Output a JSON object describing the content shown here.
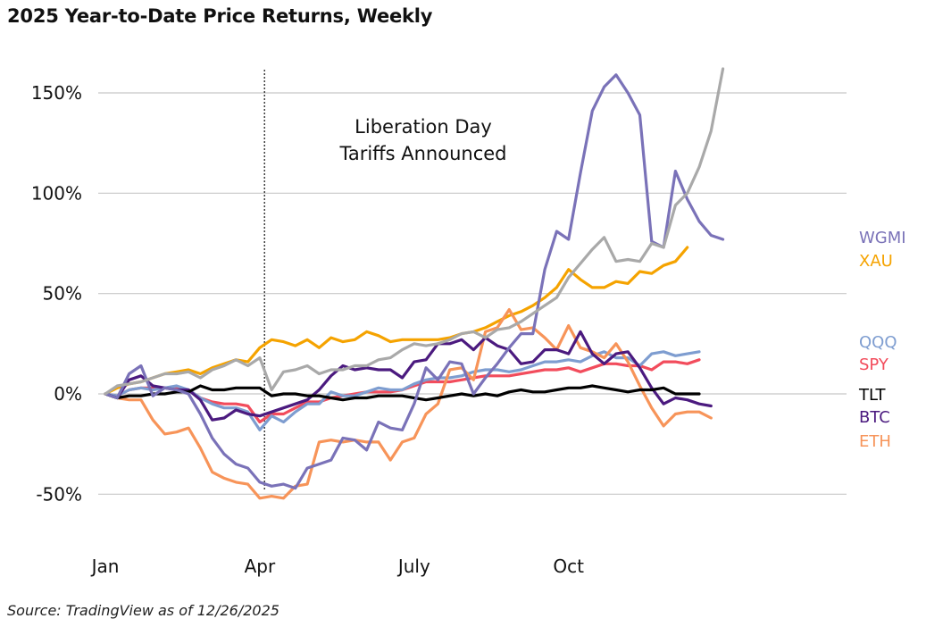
{
  "chart_data": {
    "type": "line",
    "title": "2025 Year-to-Date Price Returns, Weekly",
    "source": "Source: TradingView as of 12/26/2025",
    "xlabel": "",
    "ylabel": "",
    "ylim": [
      -65,
      170
    ],
    "yticks": [
      {
        "value": 150,
        "label": "150%"
      },
      {
        "value": 100,
        "label": "100%"
      },
      {
        "value": 50,
        "label": "50%"
      },
      {
        "value": 0,
        "label": "0%"
      },
      {
        "value": -50,
        "label": "-50%"
      }
    ],
    "xlim": [
      0,
      51
    ],
    "xticks": [
      {
        "value": 0,
        "label": "Jan"
      },
      {
        "value": 13,
        "label": "Apr"
      },
      {
        "value": 26,
        "label": "July"
      },
      {
        "value": 39,
        "label": "Oct"
      }
    ],
    "annotation": {
      "x": 13.4,
      "line1": "Liberation Day",
      "line2": "Tariffs Announced"
    },
    "series": [
      {
        "name": "XAU",
        "color": "#F5A300",
        "label_color": "#F5A300",
        "values": [
          0,
          3,
          5,
          6,
          8,
          10,
          11,
          12,
          10,
          13,
          15,
          17,
          16,
          23,
          27,
          26,
          24,
          27,
          23,
          28,
          26,
          27,
          31,
          29,
          26,
          27,
          27,
          27,
          27,
          28,
          30,
          31,
          33,
          36,
          39,
          41,
          44,
          48,
          53,
          62,
          57,
          53,
          53,
          56,
          55,
          61,
          60,
          64,
          66,
          73
        ]
      },
      {
        "name": "WGMI",
        "color": "#7A72B8",
        "label_color": "#7A72B8",
        "values": [
          0,
          -2,
          10,
          14,
          -1,
          3,
          2,
          0,
          -10,
          -22,
          -30,
          -35,
          -37,
          -44,
          -46,
          -45,
          -47,
          -37,
          -35,
          -33,
          -22,
          -23,
          -28,
          -14,
          -17,
          -18,
          -5,
          13,
          7,
          16,
          15,
          0,
          8,
          15,
          23,
          30,
          30,
          62,
          81,
          77,
          110,
          141,
          153,
          159,
          150,
          139,
          76,
          73,
          111,
          97,
          86,
          79,
          77
        ]
      },
      {
        "name": "QQQ",
        "color": "#7E9DD0",
        "label_color": "#7E9DD0",
        "values": [
          0,
          -1,
          2,
          3,
          2,
          3,
          4,
          2,
          -2,
          -5,
          -7,
          -7,
          -9,
          -18,
          -11,
          -14,
          -9,
          -5,
          -5,
          1,
          -1,
          -1,
          1,
          3,
          2,
          2,
          5,
          7,
          8,
          8,
          9,
          11,
          12,
          12,
          11,
          12,
          14,
          16,
          16,
          17,
          16,
          19,
          21,
          18,
          18,
          14,
          20,
          21,
          19,
          20,
          21
        ]
      },
      {
        "name": "SPY",
        "color": "#F24C5C",
        "label_color": "#F24C5C",
        "values": [
          0,
          -1,
          2,
          3,
          3,
          3,
          3,
          2,
          -2,
          -4,
          -5,
          -5,
          -6,
          -14,
          -10,
          -10,
          -7,
          -4,
          -4,
          -2,
          -1,
          0,
          1,
          1,
          1,
          2,
          4,
          6,
          6,
          6,
          7,
          8,
          9,
          9,
          9,
          10,
          11,
          12,
          12,
          13,
          11,
          13,
          15,
          15,
          14,
          14,
          12,
          16,
          16,
          15,
          17
        ]
      },
      {
        "name": "TLT",
        "color": "#000000",
        "label_color": "#000000",
        "values": [
          0,
          -2,
          -1,
          -1,
          0,
          0,
          1,
          1,
          4,
          2,
          2,
          3,
          3,
          3,
          -1,
          0,
          0,
          -1,
          -1,
          -2,
          -3,
          -2,
          -2,
          -1,
          -1,
          -1,
          -2,
          -3,
          -2,
          -1,
          0,
          -1,
          0,
          -1,
          1,
          2,
          1,
          1,
          2,
          3,
          3,
          4,
          3,
          2,
          1,
          2,
          2,
          3,
          0,
          0,
          0
        ]
      },
      {
        "name": "BTC",
        "color": "#4B1A7F",
        "label_color": "#4B1A7F",
        "values": [
          0,
          -2,
          7,
          9,
          4,
          3,
          2,
          2,
          -3,
          -13,
          -12,
          -8,
          -10,
          -11,
          -9,
          -7,
          -5,
          -3,
          2,
          9,
          14,
          12,
          13,
          12,
          12,
          8,
          16,
          17,
          25,
          25,
          27,
          22,
          28,
          24,
          22,
          15,
          16,
          22,
          22,
          20,
          31,
          20,
          15,
          20,
          21,
          13,
          3,
          -5,
          -2,
          -3,
          -5,
          -6
        ]
      },
      {
        "name": "ETH",
        "color": "#F79459",
        "label_color": "#F79459",
        "values": [
          0,
          -2,
          -3,
          -3,
          -13,
          -20,
          -19,
          -17,
          -27,
          -39,
          -42,
          -44,
          -45,
          -52,
          -51,
          -52,
          -46,
          -45,
          -24,
          -23,
          -24,
          -23,
          -24,
          -24,
          -33,
          -24,
          -22,
          -10,
          -5,
          12,
          13,
          7,
          31,
          33,
          42,
          32,
          33,
          28,
          22,
          34,
          23,
          21,
          18,
          25,
          16,
          4,
          -7,
          -16,
          -10,
          -9,
          -9,
          -12
        ]
      },
      {
        "name": "GREY",
        "color": "#A9A9A9",
        "label_color": "#A9A9A9",
        "unlabeled": true,
        "values": [
          0,
          4,
          5,
          6,
          8,
          10,
          10,
          11,
          8,
          12,
          14,
          17,
          14,
          18,
          2,
          11,
          12,
          14,
          10,
          12,
          12,
          14,
          14,
          17,
          18,
          22,
          25,
          24,
          25,
          27,
          30,
          31,
          28,
          32,
          33,
          36,
          40,
          44,
          48,
          58,
          65,
          72,
          78,
          66,
          67,
          66,
          75,
          73,
          94,
          100,
          113,
          131,
          162
        ]
      }
    ]
  }
}
